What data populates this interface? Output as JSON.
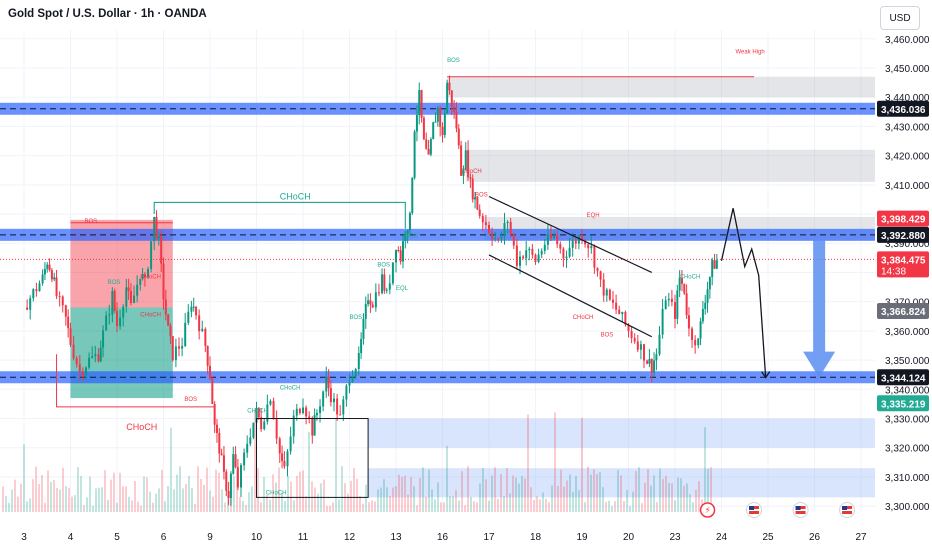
{
  "header": {
    "title": "Gold Spot / U.S. Dollar · 1h · OANDA",
    "currency_button": "USD"
  },
  "colors": {
    "up": "#089981",
    "down": "#f23645",
    "zone_blue": "#2962ff",
    "zone_gray": "#b2b5be",
    "zone_red": "#f23645",
    "zone_green": "#089981",
    "label_dark": "#131722",
    "label_red": "#f23645",
    "label_gray": "#787b86",
    "label_green": "#22ab94"
  },
  "chart_data": {
    "type": "candlestick",
    "title": "Gold Spot / U.S. Dollar · 1h · OANDA",
    "y_axis": {
      "side": "right",
      "range": [
        3298,
        3463
      ],
      "ticks": [
        3300,
        3310,
        3320,
        3330,
        3340,
        3350,
        3360,
        3370,
        3380,
        3390,
        3400,
        3410,
        3420,
        3430,
        3440,
        3450,
        3460
      ],
      "tick_labels": [
        "3,300.000",
        "3,310.000",
        "3,320.000",
        "3,330.000",
        "3,340.000",
        "3,350.000",
        "3,360.000",
        "3,370.000",
        "3,380.000",
        "3,390.000",
        "3,400.000",
        "3,410.000",
        "3,420.000",
        "3,430.000",
        "3,440.000",
        "3,450.000",
        "3,460.000"
      ]
    },
    "x_axis": {
      "ticks": [
        "3",
        "4",
        "5",
        "6",
        "9",
        "10",
        "11",
        "12",
        "13",
        "16",
        "17",
        "18",
        "19",
        "20",
        "23",
        "24",
        "25",
        "26",
        "27"
      ],
      "range_days": [
        0,
        19
      ]
    },
    "price_tags": [
      {
        "label": "3,436.036",
        "value": 3436.036,
        "style": "dark"
      },
      {
        "label": "3,398.429",
        "value": 3398.429,
        "style": "red"
      },
      {
        "label": "3,392.880",
        "value": 3392.88,
        "style": "dark"
      },
      {
        "label": "3,384.475",
        "value": 3384.475,
        "style": "red",
        "sub": "14:38"
      },
      {
        "label": "3,366.824",
        "value": 3366.824,
        "style": "gray"
      },
      {
        "label": "3,344.124",
        "value": 3344.124,
        "style": "dark"
      },
      {
        "label": "3,335.219",
        "value": 3335.219,
        "style": "green"
      }
    ],
    "horizontal_levels": [
      {
        "value": 3436.036,
        "style": "blue-band"
      },
      {
        "value": 3392.88,
        "style": "blue-band"
      },
      {
        "value": 3344.124,
        "style": "blue-band"
      }
    ],
    "zones": [
      {
        "x0": 9.1,
        "x1": 19,
        "y0": 3447,
        "y1": 3440,
        "color": "gray"
      },
      {
        "x0": 9.5,
        "x1": 19,
        "y0": 3422,
        "y1": 3411,
        "color": "gray"
      },
      {
        "x0": 9.9,
        "x1": 19,
        "y0": 3399,
        "y1": 3391,
        "color": "gray"
      },
      {
        "x0": 1.0,
        "x1": 3.2,
        "y0": 3398,
        "y1": 3368,
        "color": "red"
      },
      {
        "x0": 1.0,
        "x1": 3.2,
        "y0": 3368,
        "y1": 3337,
        "color": "green"
      },
      {
        "x0": 7.4,
        "x1": 19,
        "y0": 3330,
        "y1": 3320,
        "color": "blue"
      },
      {
        "x0": 7.4,
        "x1": 19,
        "y0": 3313,
        "y1": 3303,
        "color": "blue"
      }
    ],
    "annotations": [
      {
        "text": "CHoCH",
        "x": 5.5,
        "y": 3405,
        "color": "green"
      },
      {
        "text": "CHoCH",
        "x": 2.2,
        "y": 3326,
        "color": "red"
      },
      {
        "text": "BOS",
        "x": 1.3,
        "y": 3397,
        "color": "red"
      },
      {
        "text": "BOS",
        "x": 3.45,
        "y": 3336,
        "color": "red"
      },
      {
        "text": "BOS",
        "x": 9.1,
        "y": 3452,
        "color": "green"
      },
      {
        "text": "Weak High",
        "x": 15.3,
        "y": 3455,
        "color": "red"
      },
      {
        "text": "EQH",
        "x": 12.1,
        "y": 3399,
        "color": "red"
      },
      {
        "text": "EQL",
        "x": 8.0,
        "y": 3374,
        "color": "green"
      },
      {
        "text": "CHoCH",
        "x": 5.5,
        "y": 3340,
        "color": "green"
      },
      {
        "text": "CHoCH",
        "x": 4.8,
        "y": 3332,
        "color": "green"
      },
      {
        "text": "CHoCH",
        "x": 5.2,
        "y": 3304,
        "color": "green"
      },
      {
        "text": "BOS",
        "x": 7.0,
        "y": 3364,
        "color": "green"
      },
      {
        "text": "BOS",
        "x": 7.6,
        "y": 3382,
        "color": "green"
      },
      {
        "text": "BOS",
        "x": 8.2,
        "y": 3392,
        "color": "green"
      },
      {
        "text": "CHoCH",
        "x": 9.4,
        "y": 3414,
        "color": "red"
      },
      {
        "text": "BOS",
        "x": 9.7,
        "y": 3406,
        "color": "red"
      },
      {
        "text": "CHoCH",
        "x": 11.8,
        "y": 3364,
        "color": "red"
      },
      {
        "text": "BOS",
        "x": 12.4,
        "y": 3358,
        "color": "red"
      },
      {
        "text": "CHoCH",
        "x": 14.1,
        "y": 3378,
        "color": "green"
      },
      {
        "text": "CHoCH",
        "x": 2.5,
        "y": 3365,
        "color": "red"
      },
      {
        "text": "BOS",
        "x": 1.8,
        "y": 3376,
        "color": "green"
      },
      {
        "text": "CHoCH",
        "x": 2.5,
        "y": 3378,
        "color": "red"
      }
    ],
    "channel": {
      "upper": [
        [
          10.0,
          3406
        ],
        [
          13.5,
          3380
        ]
      ],
      "lower": [
        [
          10.0,
          3386
        ],
        [
          13.5,
          3358
        ]
      ]
    },
    "projection_path": [
      [
        15.0,
        3384
      ],
      [
        15.25,
        3402
      ],
      [
        15.5,
        3382
      ],
      [
        15.65,
        3388
      ],
      [
        15.8,
        3379
      ],
      [
        15.95,
        3344
      ]
    ],
    "target_arrow": {
      "x": 17.1,
      "from": 3391,
      "to": 3344
    },
    "event_icons": [
      {
        "x": 14.7,
        "type": "news"
      },
      {
        "x": 15.7,
        "type": "flag-us"
      },
      {
        "x": 16.7,
        "type": "flag-us"
      },
      {
        "x": 17.7,
        "type": "flag-us"
      }
    ],
    "candles_anchor": [
      [
        0.0,
        3368
      ],
      [
        0.4,
        3378
      ],
      [
        0.5,
        3384
      ],
      [
        0.6,
        3380
      ],
      [
        0.7,
        3372
      ],
      [
        0.9,
        3364
      ],
      [
        1.0,
        3356
      ],
      [
        1.2,
        3346
      ],
      [
        1.4,
        3350
      ],
      [
        1.6,
        3352
      ],
      [
        1.7,
        3359
      ],
      [
        1.9,
        3372
      ],
      [
        2.0,
        3362
      ],
      [
        2.2,
        3375
      ],
      [
        2.3,
        3368
      ],
      [
        2.5,
        3380
      ],
      [
        2.6,
        3376
      ],
      [
        2.8,
        3398
      ],
      [
        2.9,
        3390
      ],
      [
        3.0,
        3372
      ],
      [
        3.1,
        3360
      ],
      [
        3.2,
        3352
      ],
      [
        3.4,
        3356
      ],
      [
        3.6,
        3370
      ],
      [
        3.7,
        3366
      ],
      [
        3.9,
        3355
      ],
      [
        4.0,
        3345
      ],
      [
        4.1,
        3327
      ],
      [
        4.2,
        3320
      ],
      [
        4.3,
        3310
      ],
      [
        4.4,
        3304
      ],
      [
        4.5,
        3317
      ],
      [
        4.6,
        3307
      ],
      [
        4.8,
        3322
      ],
      [
        5.0,
        3332
      ],
      [
        5.1,
        3328
      ],
      [
        5.3,
        3338
      ],
      [
        5.5,
        3318
      ],
      [
        5.6,
        3312
      ],
      [
        5.8,
        3330
      ],
      [
        6.0,
        3336
      ],
      [
        6.2,
        3326
      ],
      [
        6.3,
        3332
      ],
      [
        6.5,
        3343
      ],
      [
        6.6,
        3338
      ],
      [
        6.8,
        3330
      ],
      [
        7.0,
        3345
      ],
      [
        7.2,
        3350
      ],
      [
        7.3,
        3362
      ],
      [
        7.4,
        3372
      ],
      [
        7.5,
        3370
      ],
      [
        7.7,
        3378
      ],
      [
        7.8,
        3372
      ],
      [
        8.0,
        3390
      ],
      [
        8.1,
        3385
      ],
      [
        8.2,
        3395
      ],
      [
        8.3,
        3398
      ],
      [
        8.4,
        3430
      ],
      [
        8.5,
        3440
      ],
      [
        8.6,
        3424
      ],
      [
        8.7,
        3418
      ],
      [
        8.8,
        3430
      ],
      [
        8.9,
        3436
      ],
      [
        9.0,
        3426
      ],
      [
        9.1,
        3445
      ],
      [
        9.2,
        3438
      ],
      [
        9.3,
        3430
      ],
      [
        9.4,
        3415
      ],
      [
        9.5,
        3420
      ],
      [
        9.6,
        3410
      ],
      [
        9.7,
        3405
      ],
      [
        9.8,
        3400
      ],
      [
        10.0,
        3395
      ],
      [
        10.2,
        3390
      ],
      [
        10.4,
        3398
      ],
      [
        10.6,
        3384
      ],
      [
        10.8,
        3388
      ],
      [
        11.0,
        3384
      ],
      [
        11.2,
        3390
      ],
      [
        11.4,
        3392
      ],
      [
        11.6,
        3386
      ],
      [
        11.8,
        3390
      ],
      [
        12.0,
        3393
      ],
      [
        12.2,
        3388
      ],
      [
        12.4,
        3376
      ],
      [
        12.6,
        3370
      ],
      [
        12.8,
        3366
      ],
      [
        13.0,
        3360
      ],
      [
        13.2,
        3356
      ],
      [
        13.4,
        3350
      ],
      [
        13.5,
        3348
      ],
      [
        13.6,
        3352
      ],
      [
        13.8,
        3372
      ],
      [
        14.0,
        3366
      ],
      [
        14.1,
        3378
      ],
      [
        14.2,
        3374
      ],
      [
        14.3,
        3360
      ],
      [
        14.5,
        3356
      ],
      [
        14.6,
        3368
      ],
      [
        14.7,
        3375
      ],
      [
        14.8,
        3382
      ],
      [
        14.9,
        3384
      ]
    ]
  }
}
